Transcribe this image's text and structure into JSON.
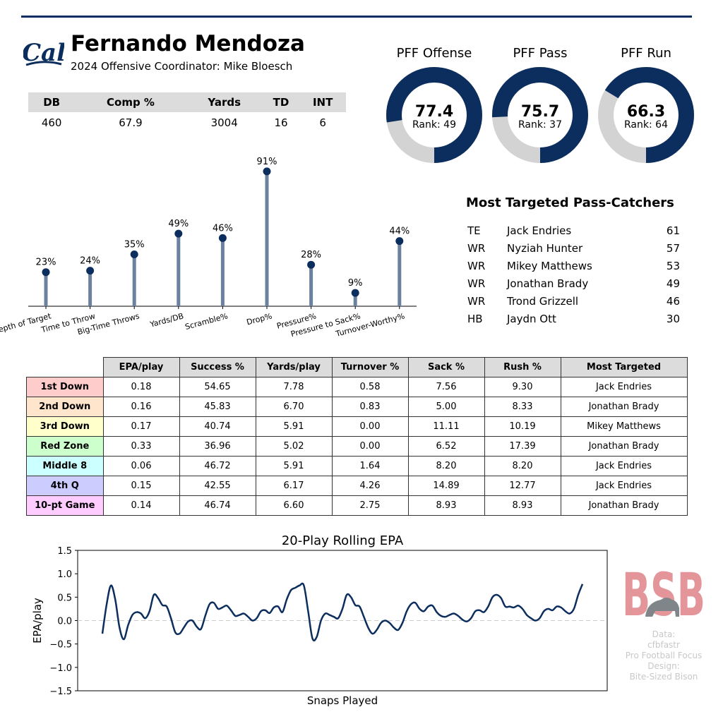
{
  "player": {
    "name": "Fernando Mendoza",
    "subtitle": "2024 Offensive Coordinator: Mike Bloesch",
    "logo_text": "Cal"
  },
  "stats": {
    "headers": [
      "DB",
      "Comp %",
      "Yards",
      "TD",
      "INT"
    ],
    "values": [
      "460",
      "67.9",
      "3004",
      "16",
      "6"
    ]
  },
  "grades": [
    {
      "title": "PFF Offense",
      "value": "77.4",
      "rank": "Rank: 49",
      "pct": 77.4
    },
    {
      "title": "PFF Pass",
      "value": "75.7",
      "rank": "Rank: 37",
      "pct": 75.7
    },
    {
      "title": "PFF Run",
      "value": "66.3",
      "rank": "Rank: 64",
      "pct": 66.3
    }
  ],
  "pass_catchers": {
    "title": "Most Targeted Pass-Catchers",
    "rows": [
      {
        "pos": "TE",
        "name": "Jack Endries",
        "targets": "61"
      },
      {
        "pos": "WR",
        "name": "Nyziah Hunter",
        "targets": "57"
      },
      {
        "pos": "WR",
        "name": "Mikey Matthews",
        "targets": "53"
      },
      {
        "pos": "WR",
        "name": "Jonathan Brady",
        "targets": "49"
      },
      {
        "pos": "WR",
        "name": "Trond Grizzell",
        "targets": "46"
      },
      {
        "pos": "HB",
        "name": "Jaydn Ott",
        "targets": "30"
      }
    ]
  },
  "situational": {
    "headers": [
      "EPA/play",
      "Success %",
      "Yards/play",
      "Turnover %",
      "Sack %",
      "Rush %",
      "Most Targeted"
    ],
    "rows": [
      {
        "label": "1st Down",
        "color": "#ffcccc",
        "cells": [
          "0.18",
          "54.65",
          "7.78",
          "0.58",
          "7.56",
          "9.30",
          "Jack Endries"
        ]
      },
      {
        "label": "2nd Down",
        "color": "#ffe5cc",
        "cells": [
          "0.16",
          "45.83",
          "6.70",
          "0.83",
          "5.00",
          "8.33",
          "Jonathan Brady"
        ]
      },
      {
        "label": "3rd Down",
        "color": "#ffffcc",
        "cells": [
          "0.17",
          "40.74",
          "5.91",
          "0.00",
          "11.11",
          "10.19",
          "Mikey Matthews"
        ]
      },
      {
        "label": "Red Zone",
        "color": "#ccffcc",
        "cells": [
          "0.33",
          "36.96",
          "5.02",
          "0.00",
          "6.52",
          "17.39",
          "Jonathan Brady"
        ]
      },
      {
        "label": "Middle 8",
        "color": "#ccffff",
        "cells": [
          "0.06",
          "46.72",
          "5.91",
          "1.64",
          "8.20",
          "8.20",
          "Jack Endries"
        ]
      },
      {
        "label": "4th Q",
        "color": "#ccccff",
        "cells": [
          "0.15",
          "42.55",
          "6.17",
          "4.26",
          "14.89",
          "12.77",
          "Jack Endries"
        ]
      },
      {
        "label": "10-pt Game",
        "color": "#ffccff",
        "cells": [
          "0.14",
          "46.74",
          "6.60",
          "2.75",
          "8.93",
          "8.93",
          "Jonathan Brady"
        ]
      }
    ]
  },
  "watermark": {
    "text": "BSB",
    "credits": [
      "Data:",
      "cfbfastr",
      "Pro Football Focus",
      "Design:",
      "Bite-Sized Bison"
    ]
  },
  "chart_data": [
    {
      "type": "lollipop",
      "categories": [
        "Depth of Target",
        "Time to Throw",
        "Big-Time Throws",
        "Yards/DB",
        "Scramble%",
        "Drop%",
        "Pressure%",
        "Pressure to Sack%",
        "Turnover-Worthy%"
      ],
      "values": [
        23,
        24,
        35,
        49,
        46,
        91,
        28,
        9,
        44
      ],
      "labels": [
        "23%",
        "24%",
        "35%",
        "49%",
        "46%",
        "91%",
        "28%",
        "9%",
        "44%"
      ],
      "ylim": [
        0,
        100
      ]
    },
    {
      "type": "line",
      "title": "20-Play Rolling EPA",
      "xlabel": "Snaps Played",
      "ylabel": "EPA/play",
      "ylim": [
        -1.5,
        1.5
      ],
      "yticks": [
        "1.5",
        "1.0",
        "0.5",
        "0.0",
        "−0.5",
        "−1.0",
        "−1.5"
      ],
      "reference_line": 0,
      "x": [
        0,
        2,
        4,
        6,
        8,
        10,
        12,
        14,
        16,
        18,
        20,
        22,
        24,
        26,
        28,
        30,
        32,
        34,
        36,
        38,
        40,
        42,
        44,
        46,
        48,
        50,
        52,
        54,
        56,
        58,
        60,
        62,
        64,
        66,
        68,
        70,
        72,
        74,
        76,
        78,
        80,
        82,
        84,
        86,
        88,
        90,
        92,
        94,
        96,
        98,
        100,
        102,
        104,
        106,
        108,
        110,
        112,
        114,
        116,
        118,
        120,
        122,
        124,
        126,
        128,
        130,
        132,
        134,
        136,
        138,
        140,
        142,
        144,
        146,
        148,
        150,
        152,
        154,
        156,
        158,
        160,
        162,
        164,
        166,
        168,
        170,
        172,
        174,
        176,
        178,
        180,
        182,
        184,
        186,
        188,
        190,
        192,
        194,
        196,
        198,
        200,
        202,
        204,
        206,
        208,
        210,
        212,
        214,
        216,
        218,
        220,
        222,
        224
      ],
      "values": [
        -0.28,
        0.35,
        0.75,
        0.45,
        -0.15,
        -0.4,
        -0.1,
        0.12,
        0.18,
        0.15,
        0.05,
        0.2,
        0.55,
        0.48,
        0.33,
        0.3,
        0.05,
        -0.25,
        -0.28,
        -0.15,
        -0.02,
        0.0,
        -0.13,
        -0.18,
        0.1,
        0.35,
        0.38,
        0.25,
        0.28,
        0.32,
        0.22,
        0.1,
        0.12,
        0.15,
        0.08,
        0.0,
        0.05,
        0.2,
        0.22,
        0.16,
        0.28,
        0.3,
        0.18,
        0.45,
        0.65,
        0.7,
        0.75,
        0.75,
        0.2,
        -0.38,
        -0.35,
        0.0,
        0.15,
        0.12,
        0.08,
        0.05,
        0.25,
        0.55,
        0.5,
        0.33,
        0.3,
        0.08,
        -0.15,
        -0.28,
        -0.2,
        -0.05,
        0.0,
        -0.05,
        -0.15,
        -0.2,
        -0.05,
        0.2,
        0.35,
        0.38,
        0.25,
        0.2,
        0.3,
        0.32,
        0.18,
        0.1,
        0.08,
        0.12,
        0.15,
        0.1,
        0.02,
        -0.02,
        0.05,
        0.2,
        0.22,
        0.18,
        0.3,
        0.5,
        0.55,
        0.48,
        0.3,
        0.3,
        0.28,
        0.32,
        0.25,
        0.12,
        0.05,
        0.0,
        0.05,
        0.2,
        0.25,
        0.22,
        0.3,
        0.28,
        0.2,
        0.15,
        0.25,
        0.55,
        0.78
      ]
    }
  ]
}
